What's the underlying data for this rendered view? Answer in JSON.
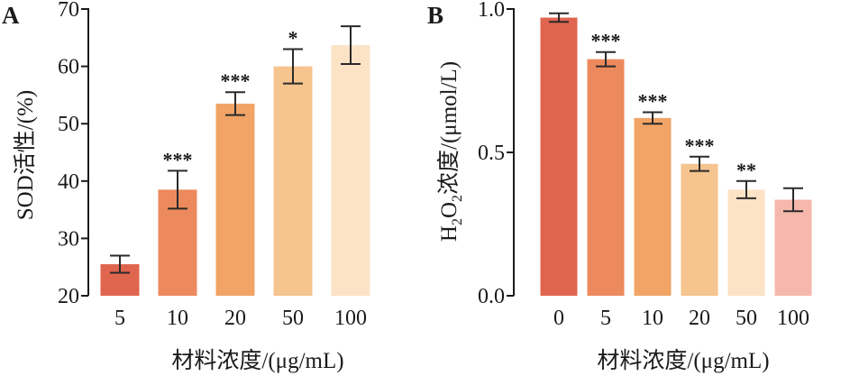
{
  "chart_data": [
    {
      "type": "bar",
      "panel_label": "A",
      "categories": [
        "5",
        "10",
        "20",
        "50",
        "100"
      ],
      "values": [
        25.5,
        38.5,
        53.5,
        60.0,
        63.7
      ],
      "errors": [
        1.5,
        3.3,
        2.0,
        3.0,
        3.3
      ],
      "significance": [
        "",
        "***",
        "***",
        "*",
        ""
      ],
      "colors": [
        "#e0654f",
        "#ec8a5d",
        "#f1a466",
        "#f6c48e",
        "#fce3c6"
      ],
      "ylabel": "SOD活性/(%)",
      "xlabel": "材料浓度/(μg/mL)",
      "ylim": [
        20,
        70
      ],
      "yticks": [
        20,
        30,
        40,
        50,
        60,
        70
      ]
    },
    {
      "type": "bar",
      "panel_label": "B",
      "categories": [
        "0",
        "5",
        "10",
        "20",
        "50",
        "100"
      ],
      "values": [
        0.97,
        0.825,
        0.62,
        0.46,
        0.37,
        0.335
      ],
      "errors": [
        0.015,
        0.025,
        0.02,
        0.025,
        0.03,
        0.04
      ],
      "significance": [
        "",
        "***",
        "***",
        "***",
        "**",
        ""
      ],
      "colors": [
        "#e0654f",
        "#ec8a5d",
        "#f1a466",
        "#f6c48e",
        "#fce3c6",
        "#f6b7ac"
      ],
      "ylabel": {
        "prefix": "H",
        "sub1": "2",
        "mid": "O",
        "sub2": "2",
        "suffix": "浓度/(μmol/L)"
      },
      "xlabel": "材料浓度/(μg/mL)",
      "ylim": [
        0,
        1.0
      ],
      "yticks": [
        0.0,
        0.5,
        1.0
      ],
      "ytick_labels": [
        "0.0",
        "0.5",
        "1.0"
      ]
    }
  ]
}
